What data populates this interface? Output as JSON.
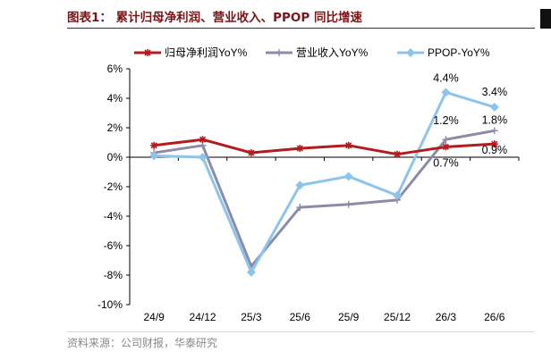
{
  "figure": {
    "title": "图表1： 累计归母净利润、营业收入、PPOP 同比增速",
    "source": "资料来源：公司财报，华泰研究"
  },
  "chart_data": {
    "type": "line",
    "categories": [
      "24/9",
      "24/12",
      "25/3",
      "25/6",
      "25/9",
      "25/12",
      "26/3",
      "26/6"
    ],
    "ylim": [
      -10,
      6
    ],
    "ytick_labels": [
      "6%",
      "4%",
      "2%",
      "0%",
      "-2%",
      "-4%",
      "-6%",
      "-8%",
      "-10%"
    ],
    "ytick_values": [
      6,
      4,
      2,
      0,
      -2,
      -4,
      -6,
      -8,
      -10
    ],
    "grid": false,
    "legend_position": "top",
    "series": [
      {
        "name": "归母净利润YoY%",
        "color": "#b21c1c",
        "marker": "star",
        "values": [
          0.8,
          1.2,
          0.3,
          0.6,
          0.8,
          0.2,
          0.7,
          0.9
        ]
      },
      {
        "name": "营业收入YoY%",
        "color": "#8c8ca6",
        "marker": "plus",
        "values": [
          0.3,
          0.8,
          -7.4,
          -3.4,
          -3.2,
          -2.9,
          1.2,
          1.8
        ]
      },
      {
        "name": "PPOP-YoY%",
        "color": "#8cc4ee",
        "marker": "diamond",
        "values": [
          0.1,
          0.0,
          -7.8,
          -1.9,
          -1.3,
          -2.6,
          4.4,
          3.4
        ]
      }
    ],
    "annotations": [
      {
        "text": "4.4%",
        "category": "26/3",
        "value": 4.4
      },
      {
        "text": "3.4%",
        "category": "26/6",
        "value": 3.4
      },
      {
        "text": "1.2%",
        "category": "26/3",
        "value": 1.2
      },
      {
        "text": "1.8%",
        "category": "26/6",
        "value": 1.8
      },
      {
        "text": "0.7%",
        "category": "26/3",
        "value": 0.7
      },
      {
        "text": "0.9%",
        "category": "26/6",
        "value": 0.9
      }
    ]
  }
}
